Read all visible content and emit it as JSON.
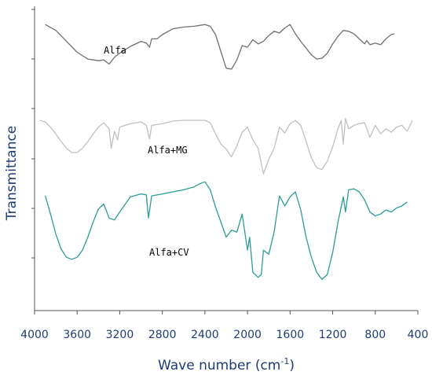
{
  "chart_data": {
    "type": "line",
    "title": "",
    "xlabel": "Wave number (cm",
    "xlabel_sup": "-1",
    "xlabel_close": ")",
    "ylabel": "Transmittance",
    "xlim": [
      4000,
      400
    ],
    "x_reversed": true,
    "grid": false,
    "x_ticks": [
      "4000",
      "3600",
      "3200",
      "2800",
      "2400",
      "2000",
      "1600",
      "1200",
      "800",
      "400"
    ],
    "x_tick_values": [
      4000,
      3600,
      3200,
      2800,
      2400,
      2000,
      1600,
      1200,
      800,
      400
    ],
    "series": [
      {
        "name": "Alfa",
        "color": "#707070",
        "x": [
          3900,
          3800,
          3700,
          3600,
          3500,
          3400,
          3350,
          3300,
          3250,
          3200,
          3100,
          3000,
          2950,
          2920,
          2900,
          2850,
          2800,
          2700,
          2600,
          2500,
          2400,
          2350,
          2300,
          2250,
          2200,
          2150,
          2100,
          2050,
          2000,
          1950,
          1900,
          1850,
          1800,
          1750,
          1700,
          1650,
          1600,
          1550,
          1500,
          1450,
          1400,
          1350,
          1300,
          1250,
          1200,
          1150,
          1100,
          1050,
          1000,
          950,
          900,
          880,
          850,
          800,
          750,
          700,
          650,
          620
        ],
        "y": [
          0.97,
          0.9,
          0.77,
          0.64,
          0.56,
          0.54,
          0.55,
          0.5,
          0.58,
          0.63,
          0.71,
          0.77,
          0.75,
          0.7,
          0.8,
          0.8,
          0.85,
          0.92,
          0.94,
          0.95,
          0.97,
          0.95,
          0.85,
          0.65,
          0.45,
          0.44,
          0.55,
          0.72,
          0.7,
          0.79,
          0.74,
          0.77,
          0.84,
          0.89,
          0.87,
          0.93,
          0.97,
          0.86,
          0.77,
          0.69,
          0.61,
          0.56,
          0.57,
          0.63,
          0.74,
          0.83,
          0.9,
          0.89,
          0.86,
          0.8,
          0.74,
          0.78,
          0.73,
          0.75,
          0.73,
          0.8,
          0.85,
          0.86
        ]
      },
      {
        "name": "Alfa+MG",
        "color": "#c0c0c0",
        "x": [
          3950,
          3900,
          3850,
          3800,
          3750,
          3700,
          3650,
          3600,
          3550,
          3500,
          3450,
          3400,
          3350,
          3300,
          3280,
          3250,
          3220,
          3200,
          3100,
          3000,
          2950,
          2920,
          2900,
          2800,
          2700,
          2600,
          2500,
          2400,
          2350,
          2300,
          2250,
          2200,
          2150,
          2100,
          2050,
          2000,
          1950,
          1900,
          1850,
          1800,
          1750,
          1700,
          1650,
          1600,
          1550,
          1500,
          1450,
          1400,
          1350,
          1300,
          1250,
          1200,
          1150,
          1120,
          1100,
          1080,
          1050,
          1000,
          950,
          900,
          850,
          800,
          750,
          700,
          650,
          600,
          550,
          500,
          450
        ],
        "y": [
          0.88,
          0.86,
          0.8,
          0.72,
          0.63,
          0.55,
          0.5,
          0.5,
          0.55,
          0.63,
          0.72,
          0.8,
          0.85,
          0.78,
          0.55,
          0.75,
          0.65,
          0.8,
          0.84,
          0.86,
          0.82,
          0.66,
          0.82,
          0.84,
          0.87,
          0.88,
          0.88,
          0.88,
          0.85,
          0.72,
          0.6,
          0.54,
          0.45,
          0.58,
          0.74,
          0.8,
          0.65,
          0.55,
          0.25,
          0.42,
          0.55,
          0.8,
          0.73,
          0.84,
          0.88,
          0.82,
          0.63,
          0.44,
          0.32,
          0.3,
          0.4,
          0.57,
          0.78,
          0.88,
          0.6,
          0.9,
          0.78,
          0.82,
          0.84,
          0.85,
          0.68,
          0.82,
          0.72,
          0.78,
          0.74,
          0.8,
          0.82,
          0.75,
          0.88
        ]
      },
      {
        "name": "Alfa+CV",
        "color": "#2a9d94",
        "x": [
          3900,
          3850,
          3800,
          3750,
          3700,
          3650,
          3600,
          3550,
          3500,
          3450,
          3400,
          3350,
          3300,
          3250,
          3200,
          3100,
          3000,
          2950,
          2930,
          2900,
          2800,
          2700,
          2600,
          2500,
          2450,
          2400,
          2350,
          2300,
          2250,
          2200,
          2150,
          2100,
          2050,
          2000,
          1980,
          1950,
          1900,
          1870,
          1850,
          1800,
          1750,
          1700,
          1650,
          1600,
          1550,
          1500,
          1450,
          1400,
          1350,
          1300,
          1250,
          1200,
          1150,
          1100,
          1080,
          1050,
          1000,
          950,
          900,
          850,
          800,
          750,
          700,
          650,
          600,
          550,
          500
        ],
        "y": [
          0.96,
          0.78,
          0.58,
          0.43,
          0.35,
          0.33,
          0.35,
          0.42,
          0.55,
          0.7,
          0.83,
          0.88,
          0.74,
          0.72,
          0.8,
          0.95,
          0.98,
          0.97,
          0.74,
          0.96,
          0.98,
          1.0,
          1.02,
          1.05,
          1.08,
          1.1,
          1.02,
          0.85,
          0.7,
          0.55,
          0.62,
          0.6,
          0.78,
          0.42,
          0.55,
          0.2,
          0.15,
          0.18,
          0.42,
          0.38,
          0.6,
          0.96,
          0.86,
          0.95,
          1.0,
          0.82,
          0.55,
          0.35,
          0.2,
          0.13,
          0.18,
          0.4,
          0.7,
          0.95,
          0.8,
          1.02,
          1.03,
          1.0,
          0.92,
          0.8,
          0.76,
          0.78,
          0.82,
          0.8,
          0.84,
          0.86,
          0.9
        ]
      }
    ]
  }
}
